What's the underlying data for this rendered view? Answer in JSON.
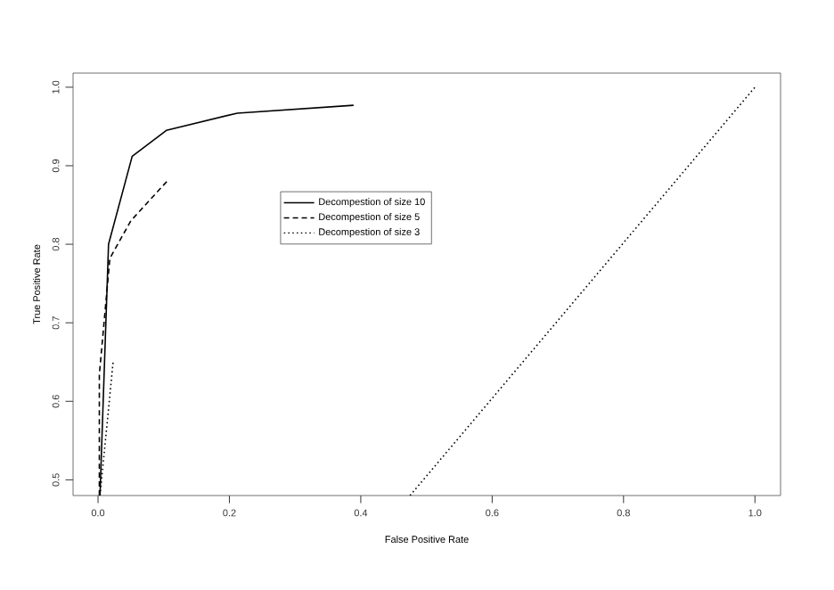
{
  "chart_data": {
    "type": "line",
    "xlabel": "False Positive Rate",
    "ylabel": "True Positive Rate",
    "xlim": [
      -0.038,
      1.039
    ],
    "ylim": [
      0.48,
      1.018
    ],
    "xticks": [
      {
        "value": 0,
        "label": "0.0"
      },
      {
        "value": 0.2,
        "label": "0.2"
      },
      {
        "value": 0.4,
        "label": "0.4"
      },
      {
        "value": 0.6,
        "label": "0.6"
      },
      {
        "value": 0.8,
        "label": "0.8"
      },
      {
        "value": 1,
        "label": "1.0"
      }
    ],
    "yticks": [
      {
        "value": 0.5,
        "label": "0.5"
      },
      {
        "value": 0.6,
        "label": "0.6"
      },
      {
        "value": 0.7,
        "label": "0.7"
      },
      {
        "value": 0.8,
        "label": "0.8"
      },
      {
        "value": 0.9,
        "label": "0.9"
      },
      {
        "value": 1,
        "label": "1.0"
      }
    ],
    "legend": "top",
    "grid": false,
    "marker": "none",
    "series": [
      {
        "name": "Decompestion of size 10",
        "color": "#000000",
        "line_style": "solid",
        "x": [
          0.003,
          0.016,
          0.052,
          0.104,
          0.212,
          0.389
        ],
        "values": [
          0.48,
          0.8,
          0.912,
          0.945,
          0.967,
          0.977
        ]
      },
      {
        "name": "Decompestion of size 5",
        "color": "#000000",
        "line_style": "dashed",
        "x": [
          0.002,
          0.002,
          0.018,
          0.05,
          0.107
        ],
        "values": [
          0.48,
          0.634,
          0.782,
          0.83,
          0.882
        ]
      },
      {
        "name": "Decompestion of size 3",
        "color": "#000000",
        "line_style": "dotted",
        "x": [
          0.003,
          0.023
        ],
        "values": [
          0.48,
          0.65
        ]
      },
      {
        "color": "#000000",
        "line_style": "dotted",
        "x": [
          0.475,
          1.0
        ],
        "values": [
          0.48,
          1.0
        ]
      }
    ]
  }
}
